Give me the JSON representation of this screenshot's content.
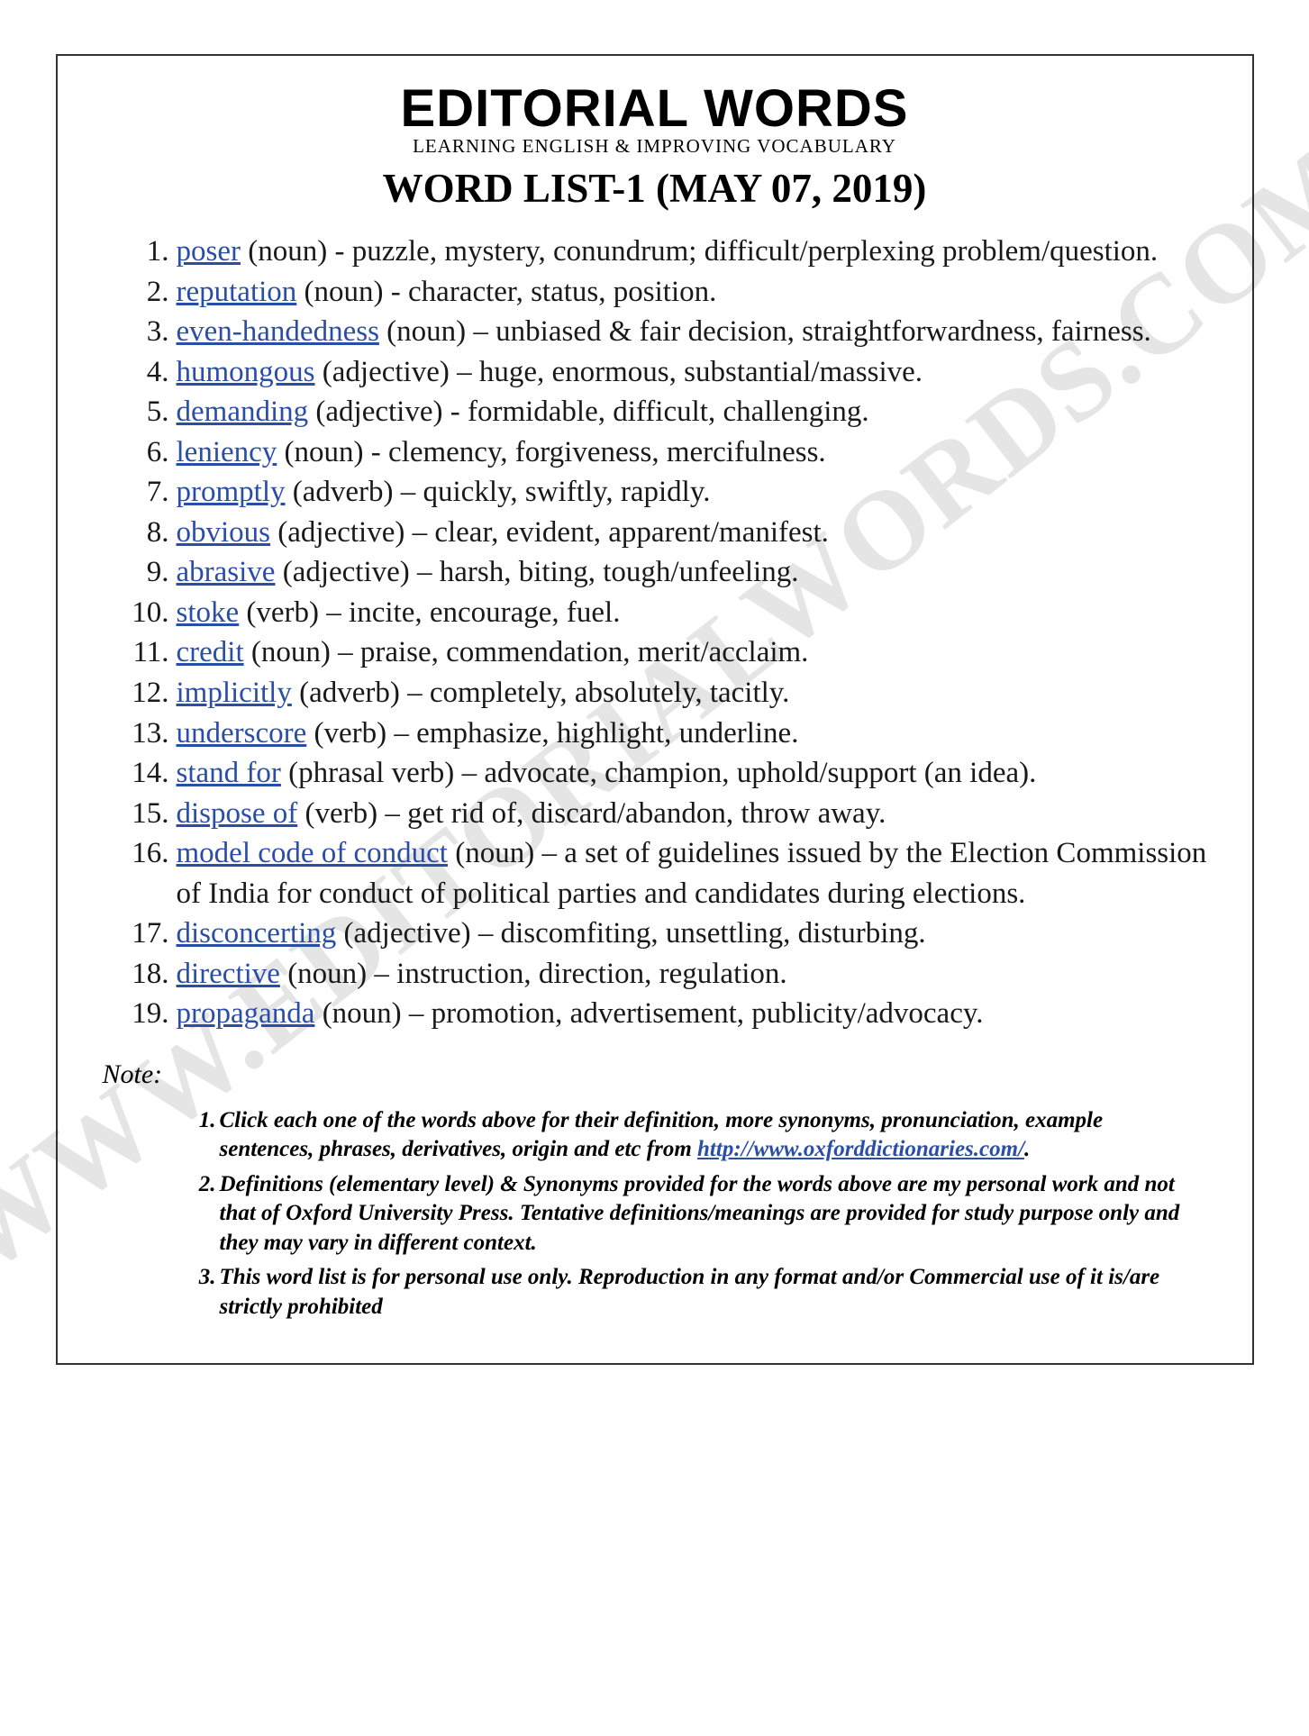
{
  "watermark": "WWW.EDITORIALWORDS.COM",
  "masthead": {
    "title": "EDITORIAL WORDS",
    "subtitle": "LEARNING ENGLISH & IMPROVING VOCABULARY"
  },
  "list_title": "WORD LIST-1 (MAY 07, 2019)",
  "link_color": "#2a4ea8",
  "text_color": "#191919",
  "words": [
    {
      "term": "poser",
      "pos": "(noun)",
      "sep": " - ",
      "def": "puzzle, mystery, conundrum; difficult/perplexing problem/question."
    },
    {
      "term": "reputation",
      "pos": "(noun)",
      "sep": " - ",
      "def": "character, status, position."
    },
    {
      "term": "even-handedness",
      "pos": "(noun)",
      "sep": " – ",
      "def": "unbiased & fair decision, straightforwardness, fairness."
    },
    {
      "term": "humongous",
      "pos": "(adjective)",
      "sep": " – ",
      "def": "huge, enormous, substantial/massive."
    },
    {
      "term": "demanding",
      "pos": "(adjective)",
      "sep": " - ",
      "def": "formidable, difficult, challenging."
    },
    {
      "term": "leniency",
      "pos": "(noun)",
      "sep": " - ",
      "def": "clemency, forgiveness, mercifulness."
    },
    {
      "term": "promptly",
      "pos": "(adverb)",
      "sep": " – ",
      "def": "quickly, swiftly, rapidly."
    },
    {
      "term": "obvious",
      "pos": "(adjective)",
      "sep": " – ",
      "def": "clear, evident, apparent/manifest."
    },
    {
      "term": "abrasive",
      "pos": "(adjective)",
      "sep": " – ",
      "def": "harsh, biting, tough/unfeeling."
    },
    {
      "term": "stoke",
      "pos": "(verb)",
      "sep": " – ",
      "def": "incite, encourage, fuel."
    },
    {
      "term": "credit",
      "pos": "(noun)",
      "sep": " – ",
      "def": "praise, commendation, merit/acclaim."
    },
    {
      "term": "implicitly",
      "pos": "(adverb)",
      "sep": " – ",
      "def": "completely, absolutely, tacitly."
    },
    {
      "term": "underscore",
      "pos": "(verb)",
      "sep": " – ",
      "def": "emphasize, highlight, underline."
    },
    {
      "term": "stand for",
      "pos": "(phrasal verb)",
      "sep": " – ",
      "def": "advocate, champion, uphold/support (an idea)."
    },
    {
      "term": "dispose of",
      "pos": "(verb)",
      "sep": " – ",
      "def": "get rid of, discard/abandon, throw away."
    },
    {
      "term": "model code of conduct",
      "pos": "(noun)",
      "sep": " – ",
      "def": "a set of guidelines issued by the Election Commission of India for conduct of political parties and candidates during elections."
    },
    {
      "term": "disconcerting",
      "pos": "(adjective)",
      "sep": " – ",
      "def": "discomfiting, unsettling, disturbing."
    },
    {
      "term": "directive",
      "pos": "(noun)",
      "sep": " – ",
      "def": "instruction, direction, regulation."
    },
    {
      "term": "propaganda",
      "pos": "(noun)",
      "sep": " – ",
      "def": "promotion, advertisement, publicity/advocacy."
    }
  ],
  "note_label": "Note:",
  "notes": [
    {
      "pre": "Click each one of the words above for their definition, more synonyms, pronunciation, example sentences, phrases, derivatives, origin and etc from ",
      "link": "http://www.oxforddictionaries.com/",
      "post": "."
    },
    {
      "pre": "Definitions (elementary level) & Synonyms provided for the words above are my personal work and not that of Oxford University Press. Tentative definitions/meanings are provided for study purpose only and they may vary in different context.",
      "link": "",
      "post": ""
    },
    {
      "pre": "This word list is for personal use only. Reproduction in any format and/or Commercial use of it is/are strictly prohibited",
      "link": "",
      "post": ""
    }
  ]
}
